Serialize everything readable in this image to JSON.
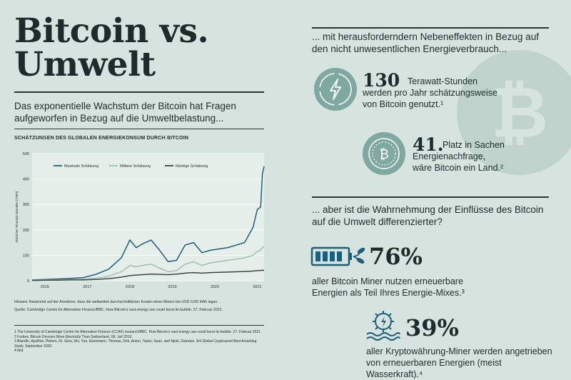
{
  "title_line1": "Bitcoin vs.",
  "title_line2": "Umwelt",
  "intro": "Das exponentielle Wachstum der Bitcoin hat Fragen aufgeworfen in Bezug auf die Umweltbelastung...",
  "chart_title": "SCHÄTZUNGEN DES GLOBALEN ENERGIEKONSUM DURCH BITCOIN",
  "chart_data": {
    "type": "line",
    "ylabel": "Jährliche Terawatt-Stunden (TWh)",
    "xlabel": "",
    "ylim": [
      0,
      500
    ],
    "yticks": [
      "0",
      "100",
      "200",
      "300",
      "400",
      "500"
    ],
    "xticks": [
      "2016",
      "2017",
      "2018",
      "2019",
      "2020",
      "2021"
    ],
    "x": [
      2015.7,
      2016.0,
      2016.3,
      2016.6,
      2016.9,
      2017.2,
      2017.5,
      2017.8,
      2018.0,
      2018.15,
      2018.3,
      2018.5,
      2018.7,
      2018.9,
      2019.1,
      2019.3,
      2019.5,
      2019.7,
      2019.9,
      2020.1,
      2020.3,
      2020.5,
      2020.7,
      2020.9,
      2021.0,
      2021.08,
      2021.12,
      2021.16
    ],
    "series": [
      {
        "name": "Maximale Schätzung",
        "color": "#1c5f7a",
        "values": [
          3,
          5,
          7,
          9,
          12,
          25,
          45,
          90,
          160,
          130,
          145,
          160,
          120,
          75,
          80,
          140,
          150,
          110,
          120,
          125,
          130,
          140,
          150,
          210,
          280,
          290,
          420,
          450
        ]
      },
      {
        "name": "Mittlere Schätzung",
        "color": "#9cbfb4",
        "values": [
          2,
          3,
          4,
          5,
          6,
          10,
          18,
          35,
          60,
          55,
          60,
          65,
          50,
          35,
          40,
          65,
          75,
          60,
          70,
          75,
          80,
          85,
          90,
          100,
          115,
          120,
          130,
          135
        ]
      },
      {
        "name": "Niedrige Schätzung",
        "color": "#3e4547",
        "values": [
          1,
          2,
          2,
          3,
          3,
          5,
          8,
          14,
          20,
          22,
          24,
          26,
          25,
          24,
          26,
          30,
          32,
          30,
          32,
          33,
          34,
          35,
          36,
          38,
          40,
          40,
          42,
          40
        ]
      }
    ]
  },
  "chart_note": "Hinweis: Basierend auf der Annahme, dass die weltweiten durchschnittlichen Kosten eines Miners bei USD 0,05/ kWh lagen.",
  "chart_source": "Quelle: Cambridge Centre for Alternative Finance/BBC. How Bitcoin's vast energy use could burst its bubble. 27. Februar 2021.",
  "footnotes": [
    "1 The University of Cambridge Centre for Alternative Finance (CCAF) research/BBC. How Bitcoin's vast energy use could burst its bubble. 27. Februar 2021.",
    "2 Forbes. Bitcoin Devours More Electricity Than Switzerland. 08. Juli 2019.",
    "3 Blandin, Apolline, Pieters, Dr. Gina, Wu, Yue, Eisermann, Thomas, Dek, Anton, Taylor, Sean, and Njoki, Damaris. 3rd Global Cryptoasset Benchmarking Study. September 2020.",
    "4 Ibid."
  ],
  "right_head1": "... mit herausforderndern Nebeneffekten in Bezug auf den nicht unwesentlichen Energieverbrauch...",
  "stat1_value": "130",
  "stat1_text": "Terawatt-Stunden werden pro Jahr schätzungsweise von Bitcoin genutzt.¹",
  "stat2_value": "41.",
  "stat2_text": "Platz in Sachen Energienachfrage, wäre Bitcoin ein Land.²",
  "right_head2": "... aber ist die Wahrnehmung der Einflüsse des Bitcoin auf die Umwelt differenzierter?",
  "stat3_value": "76%",
  "stat3_text": "aller Bitcoin Miner nutzen erneuerbare Energien als Teil Ihres Energie-Mixes.³",
  "stat4_value": "39%",
  "stat4_text": "aller Kryptowährung-Miner werden angetrieben von erneuerbaren Energien (meist Wasserkraft).⁴",
  "colors": {
    "background": "#d6e3de",
    "accent_teal": "#1c5f7a",
    "icon_circle": "#7fa9a0",
    "watermark": "#bfd3cc"
  },
  "icons": [
    "bitcoin-watermark-icon",
    "lightning-icon",
    "bitcoin-coin-icon",
    "battery-plant-icon",
    "water-wheel-icon"
  ]
}
